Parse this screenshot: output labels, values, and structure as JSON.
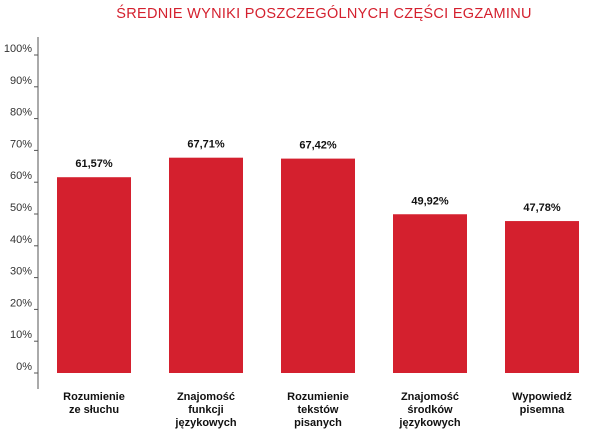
{
  "chart_data": {
    "type": "bar",
    "title": "ŚREDNIE WYNIKI POSZCZEGÓLNYCH CZĘŚCI EGZAMINU",
    "categories": [
      [
        "Rozumienie",
        "ze słuchu"
      ],
      [
        "Znajomość",
        "funkcji",
        "językowych"
      ],
      [
        "Rozumienie",
        "tekstów",
        "pisanych"
      ],
      [
        "Znajomość",
        "środków",
        "językowych"
      ],
      [
        "Wypowiedź",
        "pisemna"
      ]
    ],
    "values": [
      61.57,
      67.71,
      67.42,
      49.92,
      47.78
    ],
    "data_labels": [
      "61,57%",
      "67,71%",
      "67,42%",
      "49,92%",
      "47,78%"
    ],
    "yticks": [
      "0%",
      "10%",
      "20%",
      "30%",
      "40%",
      "50%",
      "60%",
      "70%",
      "80%",
      "90%",
      "100%"
    ],
    "ylim": [
      0,
      100
    ],
    "grid": false,
    "colors": {
      "bar": "#d4202e",
      "title": "#d4202e",
      "axis": "#555555"
    }
  }
}
